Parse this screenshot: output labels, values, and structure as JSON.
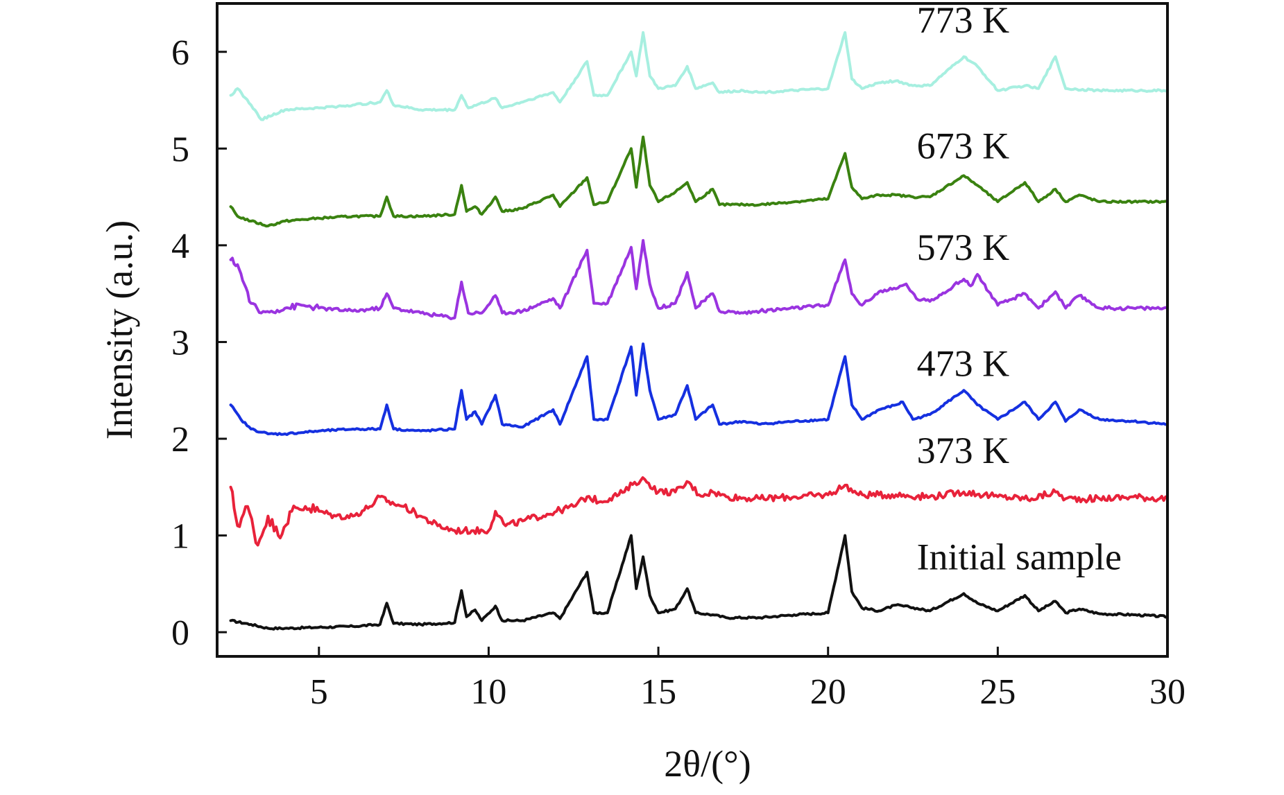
{
  "chart_data": {
    "type": "line",
    "title": "",
    "xlabel": "2θ/(°)",
    "ylabel": "Intensity (a.u.)",
    "xlim": [
      2,
      30
    ],
    "ylim": [
      -0.25,
      6.5
    ],
    "x_ticks": [
      5,
      10,
      15,
      20,
      25,
      30
    ],
    "y_ticks": [
      0,
      1,
      2,
      3,
      4,
      5,
      6
    ],
    "grid": false,
    "legend": "inline labels at right",
    "series": [
      {
        "name": "Initial sample",
        "color": "#111111",
        "x": [
          2.4,
          3.0,
          3.5,
          4.0,
          5.0,
          6.0,
          6.8,
          7.0,
          7.2,
          8.0,
          9.0,
          9.2,
          9.35,
          9.6,
          9.8,
          10.2,
          10.4,
          11.0,
          11.9,
          12.1,
          12.9,
          13.1,
          13.5,
          14.2,
          14.35,
          14.55,
          14.75,
          15.0,
          15.5,
          15.85,
          16.1,
          16.6,
          17.0,
          18.0,
          19.0,
          20.0,
          20.5,
          20.7,
          21.0,
          21.5,
          22.0,
          22.4,
          23.0,
          24.0,
          24.4,
          25.0,
          25.8,
          26.2,
          26.7,
          27.0,
          27.4,
          28.0,
          29.0,
          30.0
        ],
        "values": [
          0.12,
          0.08,
          0.04,
          0.04,
          0.05,
          0.06,
          0.08,
          0.3,
          0.09,
          0.08,
          0.1,
          0.43,
          0.16,
          0.23,
          0.12,
          0.27,
          0.12,
          0.12,
          0.2,
          0.14,
          0.62,
          0.2,
          0.2,
          1.0,
          0.45,
          0.78,
          0.38,
          0.2,
          0.24,
          0.45,
          0.2,
          0.18,
          0.15,
          0.15,
          0.18,
          0.2,
          1.0,
          0.42,
          0.25,
          0.22,
          0.28,
          0.26,
          0.22,
          0.4,
          0.3,
          0.22,
          0.38,
          0.22,
          0.32,
          0.2,
          0.24,
          0.19,
          0.18,
          0.16
        ]
      },
      {
        "name": "373 K",
        "color": "#e8223a",
        "x": [
          2.4,
          2.6,
          2.9,
          3.2,
          3.5,
          3.8,
          4.2,
          4.6,
          5.0,
          5.5,
          6.0,
          6.5,
          6.8,
          7.0,
          7.5,
          8.0,
          8.5,
          9.0,
          9.5,
          10.0,
          10.2,
          10.5,
          11.0,
          12.0,
          12.5,
          12.9,
          13.3,
          14.0,
          14.3,
          14.6,
          15.0,
          15.5,
          15.9,
          16.2,
          16.6,
          17.0,
          18.0,
          19.0,
          20.0,
          20.5,
          20.9,
          21.5,
          22.0,
          23.0,
          24.0,
          25.0,
          26.0,
          26.7,
          27.0,
          28.0,
          29.0,
          30.0
        ],
        "values": [
          1.5,
          1.1,
          1.3,
          0.9,
          1.2,
          1.0,
          1.25,
          1.3,
          1.25,
          1.2,
          1.2,
          1.3,
          1.4,
          1.35,
          1.3,
          1.2,
          1.1,
          1.05,
          1.05,
          1.05,
          1.25,
          1.1,
          1.15,
          1.25,
          1.3,
          1.4,
          1.35,
          1.45,
          1.55,
          1.58,
          1.45,
          1.45,
          1.55,
          1.42,
          1.45,
          1.4,
          1.38,
          1.4,
          1.42,
          1.52,
          1.42,
          1.42,
          1.42,
          1.4,
          1.45,
          1.4,
          1.38,
          1.45,
          1.38,
          1.38,
          1.4,
          1.38
        ]
      },
      {
        "name": "473 K",
        "color": "#1530e0",
        "x": [
          2.4,
          2.7,
          3.0,
          3.5,
          4.0,
          5.0,
          6.0,
          6.8,
          7.0,
          7.2,
          8.0,
          9.0,
          9.2,
          9.35,
          9.6,
          9.8,
          10.2,
          10.4,
          11.0,
          11.9,
          12.1,
          12.9,
          13.1,
          13.5,
          14.2,
          14.35,
          14.55,
          14.75,
          15.0,
          15.5,
          15.85,
          16.1,
          16.6,
          16.8,
          17.5,
          18.0,
          19.0,
          20.0,
          20.5,
          20.7,
          21.0,
          21.5,
          22.0,
          22.2,
          22.5,
          23.0,
          24.0,
          24.4,
          25.0,
          25.8,
          26.2,
          26.7,
          27.0,
          27.4,
          28.0,
          29.0,
          30.0
        ],
        "values": [
          2.35,
          2.2,
          2.1,
          2.05,
          2.05,
          2.08,
          2.1,
          2.1,
          2.35,
          2.1,
          2.08,
          2.1,
          2.5,
          2.2,
          2.28,
          2.15,
          2.45,
          2.15,
          2.12,
          2.3,
          2.15,
          2.85,
          2.2,
          2.2,
          2.95,
          2.45,
          2.98,
          2.5,
          2.2,
          2.25,
          2.55,
          2.2,
          2.35,
          2.15,
          2.18,
          2.15,
          2.18,
          2.2,
          2.85,
          2.35,
          2.2,
          2.3,
          2.35,
          2.38,
          2.2,
          2.25,
          2.5,
          2.35,
          2.2,
          2.38,
          2.2,
          2.38,
          2.18,
          2.3,
          2.2,
          2.18,
          2.15
        ]
      },
      {
        "name": "573 K",
        "color": "#9a34e0",
        "x": [
          2.4,
          2.6,
          2.8,
          3.0,
          3.3,
          3.6,
          4.0,
          4.5,
          5.0,
          6.0,
          6.8,
          7.0,
          7.2,
          8.0,
          9.0,
          9.2,
          9.4,
          9.8,
          10.2,
          10.4,
          11.0,
          11.9,
          12.1,
          12.9,
          13.1,
          13.5,
          14.2,
          14.35,
          14.55,
          14.75,
          15.0,
          15.5,
          15.85,
          16.1,
          16.6,
          16.8,
          17.5,
          18.0,
          19.0,
          20.0,
          20.5,
          20.7,
          21.0,
          21.5,
          22.0,
          22.3,
          22.6,
          23.0,
          24.0,
          24.2,
          24.4,
          25.0,
          25.8,
          26.2,
          26.7,
          27.0,
          27.4,
          28.0,
          29.0,
          30.0
        ],
        "values": [
          3.85,
          3.8,
          3.6,
          3.4,
          3.3,
          3.32,
          3.35,
          3.38,
          3.35,
          3.32,
          3.35,
          3.5,
          3.35,
          3.3,
          3.25,
          3.62,
          3.3,
          3.3,
          3.48,
          3.3,
          3.32,
          3.45,
          3.35,
          3.95,
          3.4,
          3.4,
          3.98,
          3.55,
          4.05,
          3.6,
          3.35,
          3.4,
          3.72,
          3.35,
          3.5,
          3.32,
          3.3,
          3.32,
          3.35,
          3.38,
          3.85,
          3.5,
          3.38,
          3.52,
          3.55,
          3.6,
          3.45,
          3.42,
          3.65,
          3.58,
          3.7,
          3.38,
          3.5,
          3.35,
          3.52,
          3.35,
          3.48,
          3.35,
          3.35,
          3.35
        ]
      },
      {
        "name": "673 K",
        "color": "#3a8210",
        "x": [
          2.4,
          2.6,
          3.0,
          3.5,
          4.0,
          5.0,
          6.0,
          6.8,
          7.0,
          7.2,
          8.0,
          9.0,
          9.2,
          9.35,
          9.6,
          9.8,
          10.2,
          10.4,
          11.0,
          11.9,
          12.1,
          12.9,
          13.1,
          13.5,
          14.2,
          14.35,
          14.55,
          14.75,
          15.0,
          15.5,
          15.85,
          16.1,
          16.6,
          16.8,
          17.5,
          18.0,
          19.0,
          20.0,
          20.5,
          20.7,
          21.0,
          21.5,
          22.0,
          22.5,
          23.0,
          24.0,
          24.4,
          25.0,
          25.8,
          26.2,
          26.7,
          27.0,
          27.4,
          28.0,
          29.0,
          30.0
        ],
        "values": [
          4.4,
          4.3,
          4.25,
          4.2,
          4.25,
          4.28,
          4.3,
          4.3,
          4.5,
          4.3,
          4.3,
          4.32,
          4.62,
          4.35,
          4.4,
          4.32,
          4.5,
          4.35,
          4.38,
          4.52,
          4.4,
          4.7,
          4.42,
          4.45,
          5.0,
          4.6,
          5.12,
          4.62,
          4.45,
          4.55,
          4.65,
          4.45,
          4.58,
          4.42,
          4.42,
          4.42,
          4.45,
          4.48,
          4.95,
          4.6,
          4.48,
          4.52,
          4.52,
          4.5,
          4.5,
          4.72,
          4.62,
          4.45,
          4.65,
          4.45,
          4.58,
          4.45,
          4.52,
          4.45,
          4.45,
          4.45
        ]
      },
      {
        "name": "773 K",
        "color": "#a7efe0",
        "x": [
          2.4,
          2.6,
          3.0,
          3.3,
          4.0,
          5.0,
          6.0,
          6.8,
          7.0,
          7.2,
          8.0,
          9.0,
          9.2,
          9.4,
          10.2,
          10.4,
          11.9,
          12.1,
          12.9,
          13.1,
          13.5,
          14.2,
          14.35,
          14.55,
          14.75,
          15.0,
          15.5,
          15.85,
          16.1,
          16.6,
          16.8,
          17.5,
          18.0,
          19.0,
          20.0,
          20.5,
          20.7,
          21.0,
          21.5,
          22.0,
          22.5,
          23.0,
          24.0,
          24.4,
          25.0,
          25.8,
          26.2,
          26.7,
          27.0,
          28.0,
          29.0,
          30.0
        ],
        "values": [
          5.55,
          5.62,
          5.45,
          5.3,
          5.4,
          5.42,
          5.45,
          5.48,
          5.6,
          5.45,
          5.4,
          5.4,
          5.55,
          5.42,
          5.52,
          5.42,
          5.58,
          5.48,
          5.9,
          5.55,
          5.55,
          6.0,
          5.75,
          6.2,
          5.75,
          5.62,
          5.65,
          5.85,
          5.62,
          5.68,
          5.58,
          5.6,
          5.58,
          5.6,
          5.62,
          6.2,
          5.72,
          5.62,
          5.68,
          5.7,
          5.65,
          5.65,
          5.95,
          5.85,
          5.6,
          5.65,
          5.62,
          5.95,
          5.62,
          5.6,
          5.6,
          5.6
        ]
      }
    ],
    "series_labels": [
      {
        "text": "Initial sample",
        "at": [
          22.0,
          0.65
        ]
      },
      {
        "text": "373 K",
        "at": [
          22.0,
          1.75
        ]
      },
      {
        "text": "473 K",
        "at": [
          22.0,
          2.65
        ]
      },
      {
        "text": "573 K",
        "at": [
          22.0,
          3.85
        ]
      },
      {
        "text": "673 K",
        "at": [
          22.0,
          4.9
        ]
      },
      {
        "text": "773 K",
        "at": [
          22.0,
          6.2
        ]
      }
    ]
  }
}
